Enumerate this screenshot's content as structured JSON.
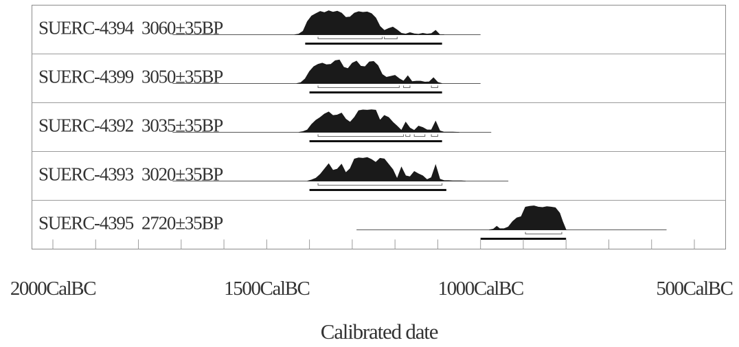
{
  "chart_data": {
    "type": "area",
    "xlabel": "Calibrated date",
    "x_axis": {
      "min_calBC": 2000,
      "max_calBC": 500,
      "direction": "decreasing (BC years, older on the left)",
      "tick_labels": [
        "2000CalBC",
        "1500CalBC",
        "1000CalBC",
        "500CalBC"
      ],
      "major_ticks_calBC": [
        2000,
        1500,
        1000,
        500
      ],
      "minor_tick_step_years": 100
    },
    "grid": "vertical ticks at each 100 years, horizontal separators between samples",
    "series": [
      {
        "name": "SUERC-4394",
        "age": "3060±35BP",
        "line_range_calBC": [
          1720,
          1000
        ],
        "range_68_calBC": [
          [
            1380,
            1230
          ],
          [
            1225,
            1195
          ]
        ],
        "range_95_calBC": [
          1410,
          1090
        ],
        "distribution": [
          [
            1435,
            0
          ],
          [
            1425,
            0.03
          ],
          [
            1415,
            0.15
          ],
          [
            1405,
            0.55
          ],
          [
            1395,
            0.78
          ],
          [
            1385,
            0.88
          ],
          [
            1375,
            0.97
          ],
          [
            1365,
            0.92
          ],
          [
            1355,
            1
          ],
          [
            1345,
            0.94
          ],
          [
            1335,
            0.98
          ],
          [
            1325,
            0.9
          ],
          [
            1315,
            0.72
          ],
          [
            1305,
            0.74
          ],
          [
            1295,
            0.9
          ],
          [
            1285,
            0.96
          ],
          [
            1275,
            0.93
          ],
          [
            1265,
            0.95
          ],
          [
            1255,
            0.88
          ],
          [
            1245,
            0.7
          ],
          [
            1235,
            0.35
          ],
          [
            1225,
            0.18
          ],
          [
            1215,
            0.26
          ],
          [
            1205,
            0.32
          ],
          [
            1195,
            0.2
          ],
          [
            1185,
            0.06
          ],
          [
            1175,
            0.03
          ],
          [
            1165,
            0.09
          ],
          [
            1155,
            0.04
          ],
          [
            1145,
            0.02
          ],
          [
            1135,
            0.06
          ],
          [
            1125,
            0.03
          ],
          [
            1115,
            0.05
          ],
          [
            1105,
            0.18
          ],
          [
            1095,
            0
          ],
          [
            1085,
            0
          ]
        ]
      },
      {
        "name": "SUERC-4399",
        "age": "3050±35BP",
        "line_range_calBC": [
          1720,
          1000
        ],
        "range_68_calBC": [
          [
            1380,
            1190
          ],
          [
            1180,
            1165
          ],
          [
            1115,
            1100
          ]
        ],
        "range_95_calBC": [
          1400,
          1090
        ],
        "distribution": [
          [
            1430,
            0
          ],
          [
            1420,
            0.04
          ],
          [
            1410,
            0.2
          ],
          [
            1400,
            0.5
          ],
          [
            1390,
            0.7
          ],
          [
            1380,
            0.8
          ],
          [
            1370,
            0.85
          ],
          [
            1360,
            0.78
          ],
          [
            1350,
            0.8
          ],
          [
            1340,
            0.95
          ],
          [
            1330,
            0.98
          ],
          [
            1320,
            0.68
          ],
          [
            1310,
            0.62
          ],
          [
            1300,
            0.85
          ],
          [
            1290,
            0.93
          ],
          [
            1280,
            0.72
          ],
          [
            1270,
            0.7
          ],
          [
            1260,
            0.9
          ],
          [
            1250,
            0.92
          ],
          [
            1240,
            0.75
          ],
          [
            1230,
            0.38
          ],
          [
            1220,
            0.26
          ],
          [
            1210,
            0.3
          ],
          [
            1200,
            0.34
          ],
          [
            1190,
            0.2
          ],
          [
            1180,
            0.1
          ],
          [
            1170,
            0.32
          ],
          [
            1160,
            0.08
          ],
          [
            1150,
            0.1
          ],
          [
            1140,
            0.1
          ],
          [
            1130,
            0.06
          ],
          [
            1120,
            0.07
          ],
          [
            1110,
            0.24
          ],
          [
            1100,
            0.05
          ],
          [
            1090,
            0
          ]
        ]
      },
      {
        "name": "SUERC-4392",
        "age": "3035±35BP",
        "line_range_calBC": [
          1720,
          975
        ],
        "range_68_calBC": [
          [
            1380,
            1180
          ],
          [
            1175,
            1165
          ],
          [
            1155,
            1130
          ],
          [
            1115,
            1100
          ]
        ],
        "range_95_calBC": [
          1400,
          1090
        ],
        "distribution": [
          [
            1425,
            0
          ],
          [
            1415,
            0.03
          ],
          [
            1405,
            0.1
          ],
          [
            1395,
            0.33
          ],
          [
            1385,
            0.5
          ],
          [
            1375,
            0.62
          ],
          [
            1365,
            0.76
          ],
          [
            1355,
            0.85
          ],
          [
            1345,
            0.7
          ],
          [
            1335,
            0.72
          ],
          [
            1325,
            0.8
          ],
          [
            1315,
            0.55
          ],
          [
            1305,
            0.42
          ],
          [
            1295,
            0.62
          ],
          [
            1285,
            0.9
          ],
          [
            1275,
            0.93
          ],
          [
            1265,
            0.92
          ],
          [
            1255,
            0.94
          ],
          [
            1245,
            0.92
          ],
          [
            1235,
            0.5
          ],
          [
            1225,
            0.7
          ],
          [
            1215,
            0.62
          ],
          [
            1205,
            0.42
          ],
          [
            1195,
            0.26
          ],
          [
            1185,
            0.08
          ],
          [
            1175,
            0.42
          ],
          [
            1165,
            0.18
          ],
          [
            1155,
            0.08
          ],
          [
            1145,
            0.26
          ],
          [
            1135,
            0.2
          ],
          [
            1125,
            0.1
          ],
          [
            1115,
            0.1
          ],
          [
            1105,
            0.46
          ],
          [
            1095,
            0.06
          ],
          [
            1085,
            0.01
          ],
          [
            1065,
            0.01
          ],
          [
            1050,
            0
          ]
        ]
      },
      {
        "name": "SUERC-4393",
        "age": "3020±35BP",
        "line_range_calBC": [
          1720,
          935
        ],
        "range_68_calBC": [
          [
            1380,
            1090
          ]
        ],
        "range_95_calBC": [
          1400,
          1080
        ],
        "distribution": [
          [
            1405,
            0
          ],
          [
            1395,
            0.05
          ],
          [
            1385,
            0.12
          ],
          [
            1375,
            0.28
          ],
          [
            1365,
            0.5
          ],
          [
            1355,
            0.72
          ],
          [
            1345,
            0.45
          ],
          [
            1335,
            0.5
          ],
          [
            1325,
            0.7
          ],
          [
            1315,
            0.35
          ],
          [
            1305,
            0.52
          ],
          [
            1295,
            0.92
          ],
          [
            1285,
            0.97
          ],
          [
            1275,
            0.95
          ],
          [
            1265,
            0.98
          ],
          [
            1255,
            0.9
          ],
          [
            1245,
            0.78
          ],
          [
            1235,
            0.95
          ],
          [
            1225,
            0.92
          ],
          [
            1215,
            0.7
          ],
          [
            1205,
            0.48
          ],
          [
            1195,
            0.1
          ],
          [
            1185,
            0.58
          ],
          [
            1175,
            0.22
          ],
          [
            1165,
            0.18
          ],
          [
            1155,
            0.4
          ],
          [
            1145,
            0.3
          ],
          [
            1135,
            0.22
          ],
          [
            1125,
            0.06
          ],
          [
            1115,
            0.15
          ],
          [
            1105,
            0.67
          ],
          [
            1095,
            0.08
          ],
          [
            1085,
            0.02
          ],
          [
            1075,
            0.02
          ],
          [
            1065,
            0.01
          ],
          [
            1045,
            0.01
          ],
          [
            1035,
            0
          ]
        ]
      },
      {
        "name": "SUERC-4395",
        "age": "2720±35BP",
        "line_range_calBC": [
          1290,
          565
        ],
        "range_68_calBC": [
          [
            895,
            810
          ]
        ],
        "range_95_calBC": [
          1000,
          800
        ],
        "distribution": [
          [
            980,
            0
          ],
          [
            970,
            0.03
          ],
          [
            962,
            0.15
          ],
          [
            955,
            0.05
          ],
          [
            945,
            0.05
          ],
          [
            935,
            0.12
          ],
          [
            925,
            0.35
          ],
          [
            915,
            0.5
          ],
          [
            905,
            0.55
          ],
          [
            895,
            0.95
          ],
          [
            885,
            0.98
          ],
          [
            875,
            1
          ],
          [
            865,
            0.95
          ],
          [
            855,
            0.93
          ],
          [
            845,
            0.97
          ],
          [
            835,
            0.95
          ],
          [
            825,
            0.92
          ],
          [
            815,
            0.7
          ],
          [
            808,
            0.35
          ],
          [
            800,
            0
          ]
        ]
      }
    ]
  }
}
